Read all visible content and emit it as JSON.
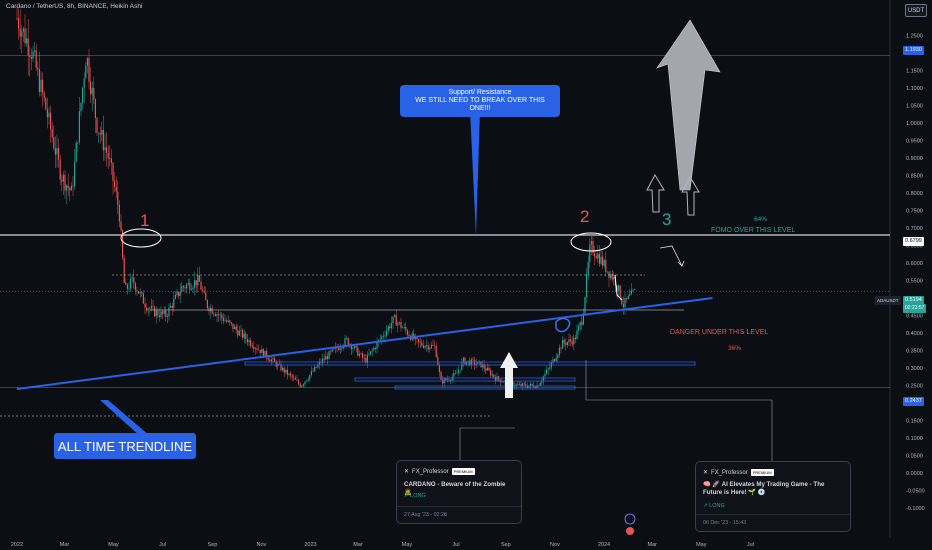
{
  "header": {
    "title": "Cardano / TetherUS, 8h, BINANCE, Heikin Ashi",
    "currency_button": "USDT"
  },
  "price_axis": {
    "ticks": [
      "1.2500",
      "1.1500",
      "1.1000",
      "1.0500",
      "1.0000",
      "0.9500",
      "0.9000",
      "0.8500",
      "0.8000",
      "0.7500",
      "0.7000",
      "0.6500",
      "0.6000",
      "0.5500",
      "0.5000",
      "0.4500",
      "0.4000",
      "0.3500",
      "0.3000",
      "0.2500",
      "0.2000",
      "0.1500",
      "0.1000",
      "0.0500",
      "0.0000",
      "-0.0500",
      "-0.1000"
    ],
    "tags": {
      "resistance_high": "1.1930",
      "resistance": "0.6799",
      "symbol": "ADAUSDT",
      "current_price": "0.5194",
      "countdown": "02:23:57",
      "support": "0.2437"
    }
  },
  "time_axis": {
    "labels": [
      "2022",
      "Mar",
      "May",
      "Jul",
      "Sep",
      "Nov",
      "2023",
      "Mar",
      "May",
      "Jul",
      "Sep",
      "Nov",
      "2024",
      "Mar",
      "May",
      "Jul"
    ]
  },
  "annotations": {
    "callout": {
      "line1": "Support/ Resistance",
      "line2": "WE STILL NEED TO BREAK OVER THIS ONE!!!"
    },
    "num1": "1",
    "num2": "2",
    "num3": "3",
    "fomo_pct": "64%",
    "fomo_text": "FOMO OVER THIS LEVEL",
    "danger_text": "DANGER UNDER THIS LEVEL",
    "danger_pct": "36%",
    "trendline_label": "ALL TIME TRENDLINE"
  },
  "ideas": [
    {
      "author": "FX_Professor",
      "badge": "PREMIUM",
      "title": "CARDANO - Beware of the Zombie 🧟",
      "direction": "LONG",
      "date": "27 Aug '23 - 02:28"
    },
    {
      "author": "FX_Professor",
      "badge": "PREMIUM",
      "title": "🧠 🚀 AI Elevates My Trading Game - The Future is Here! 🌱 💿",
      "direction": "LONG",
      "date": "06 Dec '23 - 15:43"
    }
  ],
  "colors": {
    "background": "#0b0e13",
    "up": "#26a69a",
    "down": "#ef5350",
    "trendline": "#2a62e6",
    "level_white": "#d1d4dc",
    "arrow": "#b2b5be"
  },
  "chart_data": {
    "type": "candlestick",
    "title": "Cardano / TetherUS, 8h, BINANCE, Heikin Ashi",
    "ylim": [
      -0.1,
      1.29
    ],
    "x_range": [
      "2022-01",
      "2024-08"
    ],
    "close_path": [
      {
        "x": "2022-01-01",
        "y": 1.3
      },
      {
        "x": "2022-01-20",
        "y": 1.2
      },
      {
        "x": "2022-02-05",
        "y": 1.05
      },
      {
        "x": "2022-02-25",
        "y": 0.85
      },
      {
        "x": "2022-03-10",
        "y": 0.8
      },
      {
        "x": "2022-03-28",
        "y": 1.2
      },
      {
        "x": "2022-04-10",
        "y": 1.0
      },
      {
        "x": "2022-04-25",
        "y": 0.9
      },
      {
        "x": "2022-05-08",
        "y": 0.75
      },
      {
        "x": "2022-05-15",
        "y": 0.52
      },
      {
        "x": "2022-05-25",
        "y": 0.55
      },
      {
        "x": "2022-06-10",
        "y": 0.48
      },
      {
        "x": "2022-06-20",
        "y": 0.46
      },
      {
        "x": "2022-07-05",
        "y": 0.45
      },
      {
        "x": "2022-07-25",
        "y": 0.53
      },
      {
        "x": "2022-08-15",
        "y": 0.55
      },
      {
        "x": "2022-08-25",
        "y": 0.48
      },
      {
        "x": "2022-09-15",
        "y": 0.44
      },
      {
        "x": "2022-10-15",
        "y": 0.38
      },
      {
        "x": "2022-11-10",
        "y": 0.33
      },
      {
        "x": "2022-12-20",
        "y": 0.25
      },
      {
        "x": "2023-01-15",
        "y": 0.32
      },
      {
        "x": "2023-02-15",
        "y": 0.38
      },
      {
        "x": "2023-03-10",
        "y": 0.32
      },
      {
        "x": "2023-04-15",
        "y": 0.44
      },
      {
        "x": "2023-05-15",
        "y": 0.37
      },
      {
        "x": "2023-06-05",
        "y": 0.36
      },
      {
        "x": "2023-06-12",
        "y": 0.26
      },
      {
        "x": "2023-07-01",
        "y": 0.28
      },
      {
        "x": "2023-07-10",
        "y": 0.32
      },
      {
        "x": "2023-08-01",
        "y": 0.31
      },
      {
        "x": "2023-08-20",
        "y": 0.27
      },
      {
        "x": "2023-09-15",
        "y": 0.25
      },
      {
        "x": "2023-10-10",
        "y": 0.25
      },
      {
        "x": "2023-10-25",
        "y": 0.3
      },
      {
        "x": "2023-11-10",
        "y": 0.37
      },
      {
        "x": "2023-11-25",
        "y": 0.38
      },
      {
        "x": "2023-12-05",
        "y": 0.44
      },
      {
        "x": "2023-12-15",
        "y": 0.65
      },
      {
        "x": "2023-12-25",
        "y": 0.62
      },
      {
        "x": "2024-01-05",
        "y": 0.58
      },
      {
        "x": "2024-01-15",
        "y": 0.55
      },
      {
        "x": "2024-01-25",
        "y": 0.48
      },
      {
        "x": "2024-02-05",
        "y": 0.51
      },
      {
        "x": "2024-02-10",
        "y": 0.52
      }
    ],
    "levels": [
      {
        "value": 1.193,
        "label": "1.1930"
      },
      {
        "value": 0.6799,
        "label": "0.6799"
      },
      {
        "value": 0.2437,
        "label": "0.2437"
      }
    ],
    "last_price": 0.5194,
    "trendline": {
      "start": {
        "x": "2022-01-01",
        "y": 0.24
      },
      "end": {
        "x": "2024-05-15",
        "y": 0.5
      }
    }
  }
}
